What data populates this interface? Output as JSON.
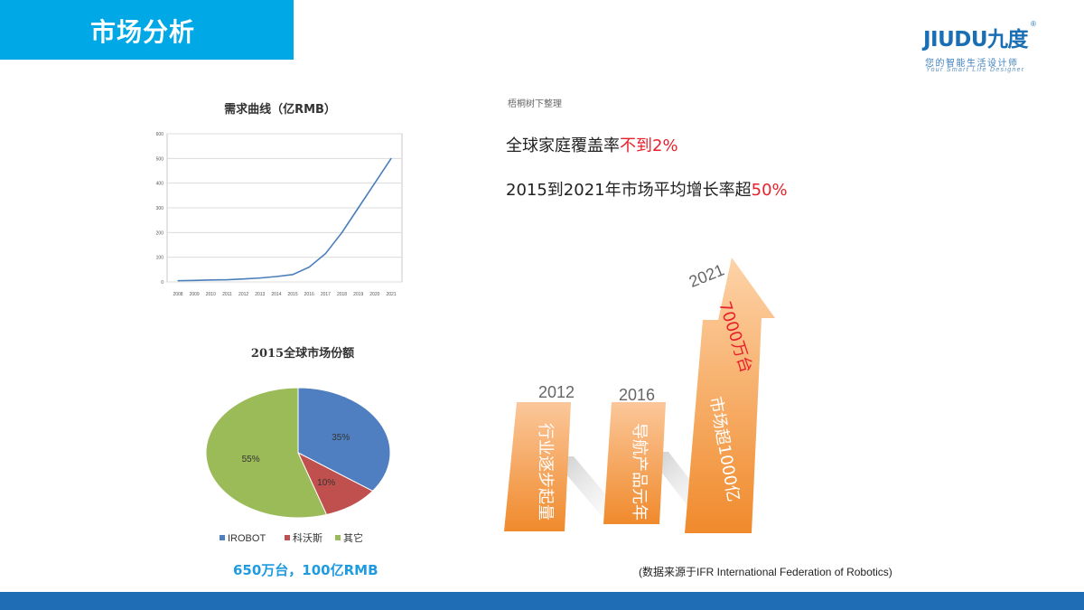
{
  "header": {
    "title": "市场分析"
  },
  "logo": {
    "name": "JIUDU九度",
    "registered": "®",
    "tagline_cn": "您的智能生活设计师",
    "tagline_en": "Your Smart Life Designer"
  },
  "line_chart": {
    "title": "需求曲线（亿RMB）",
    "years": [
      "2008",
      "2009",
      "2010",
      "2011",
      "2012",
      "2013",
      "2014",
      "2015",
      "2016",
      "2017",
      "2018",
      "2019",
      "2020",
      "2021"
    ],
    "values": [
      5,
      6,
      8,
      9,
      12,
      16,
      22,
      30,
      60,
      115,
      200,
      300,
      400,
      500
    ],
    "y_ticks": [
      "0",
      "100",
      "200",
      "300",
      "400",
      "500",
      "600"
    ],
    "ylim": [
      0,
      600
    ],
    "line_color": "#4a7ebb"
  },
  "pie_chart": {
    "title": "2015全球市场份额",
    "slices": [
      {
        "label": "IROBOT",
        "value": 35,
        "pct": "35%",
        "color": "#4f7fc1"
      },
      {
        "label": "科沃斯",
        "value": 10,
        "pct": "10%",
        "color": "#c0504d"
      },
      {
        "label": "其它",
        "value": 55,
        "pct": "55%",
        "color": "#9bbb59"
      }
    ],
    "caption": "650万台，100亿RMB"
  },
  "right": {
    "source_note": "梧桐树下整理",
    "stat1_prefix": "全球家庭覆盖率",
    "stat1_highlight": "不到2%",
    "stat2_prefix": "2015到2021年市场平均增长率超",
    "stat2_highlight": "50%",
    "milestones": [
      {
        "year": "2012",
        "text": "行业逐步起量"
      },
      {
        "year": "2016",
        "text": "导航产品元年"
      },
      {
        "year": "2021",
        "text1": "7000万台",
        "text2": "市场超1000亿"
      }
    ],
    "reference": "(数据来源于IFR International Federation of Robotics)"
  },
  "colors": {
    "accent": "#00a9e6",
    "footer": "#1f6db5",
    "highlight": "#e8202b",
    "orange": "#f39a3e"
  }
}
